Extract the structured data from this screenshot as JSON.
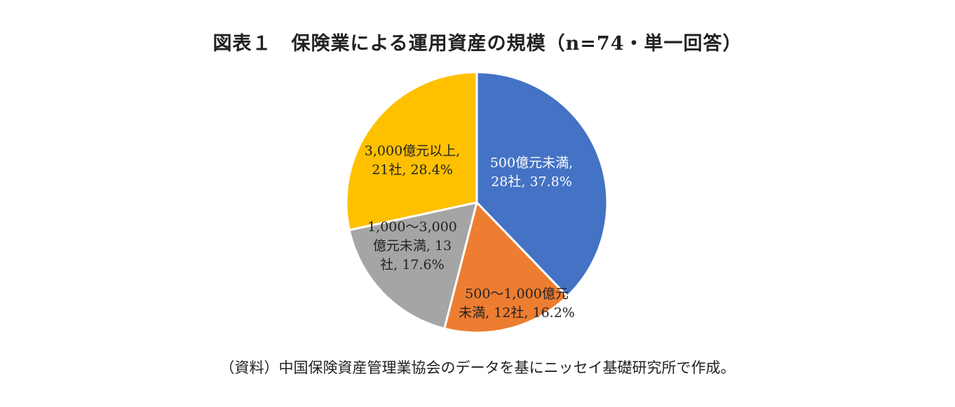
{
  "title": "図表１　保険業による運用資産の規模（n=74・単一回答）",
  "source": "（資料）中国保険資産管理業協会のデータを基にニッセイ基礎研究所で作成。",
  "chart_data": {
    "type": "pie",
    "title": "図表１　保険業による運用資産の規模（n=74・単一回答）",
    "n": 74,
    "slices": [
      {
        "category": "500億元未満",
        "companies": 28,
        "percent": 37.8,
        "color": "#4472C4",
        "label_color": "#ffffff",
        "label_lines": [
          "500億元未満,",
          "28社, 37.8%"
        ]
      },
      {
        "category": "500～1,000億元未満",
        "companies": 12,
        "percent": 16.2,
        "color": "#ED7D31",
        "label_color": "#222222",
        "label_lines": [
          "500～1,000億元",
          "未満, 12社, 16.2%"
        ]
      },
      {
        "category": "1,000～3,000億元未満",
        "companies": 13,
        "percent": 17.6,
        "color": "#A5A5A5",
        "label_color": "#222222",
        "label_lines": [
          "1,000～3,000",
          "億元未満, 13",
          "社, 17.6%"
        ]
      },
      {
        "category": "3,000億元以上",
        "companies": 21,
        "percent": 28.4,
        "color": "#FFC000",
        "label_color": "#222222",
        "label_lines": [
          "3,000億元以上,",
          "21社, 28.4%"
        ]
      }
    ],
    "start": "12 o'clock",
    "direction": "clockwise",
    "legend": "none"
  }
}
